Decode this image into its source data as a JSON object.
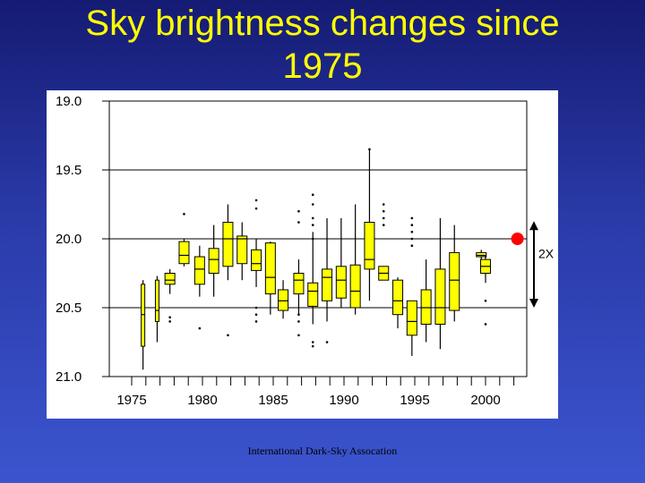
{
  "slide": {
    "title_line1": "Sky brightness changes since",
    "title_line2": "1975",
    "footer": "International Dark-Sky Assocation"
  },
  "chart_data": {
    "type": "boxplot",
    "title": "Sky brightness changes since 1975",
    "ylim": [
      21.0,
      19.0
    ],
    "y_reversed": true,
    "yticks": [
      "19.0",
      "19.5",
      "20.0",
      "20.5",
      "21.0"
    ],
    "xlim": [
      1974,
      2003
    ],
    "xticks": [
      "1975",
      "1980",
      "1985",
      "1990",
      "1995",
      "2000"
    ],
    "box_color": "#ffff00",
    "boxes": [
      {
        "x": 1975.8,
        "whisker_low": 20.3,
        "q1": 20.33,
        "median": 20.55,
        "q3": 20.78,
        "whisker_high": 20.95,
        "fill": false
      },
      {
        "x": 1976.8,
        "whisker_low": 20.27,
        "q1": 20.3,
        "median": 20.52,
        "q3": 20.6,
        "whisker_high": 20.75,
        "fill": false
      },
      {
        "x": 1977.7,
        "whisker_low": 20.22,
        "q1": 20.25,
        "median": 20.3,
        "q3": 20.33,
        "whisker_high": 20.4,
        "outliers": [
          20.57,
          20.6
        ]
      },
      {
        "x": 1978.7,
        "whisker_low": 20.0,
        "q1": 20.02,
        "median": 20.12,
        "q3": 20.18,
        "whisker_high": 20.2,
        "outliers": [
          19.82
        ]
      },
      {
        "x": 1979.8,
        "whisker_low": 20.05,
        "q1": 20.13,
        "median": 20.22,
        "q3": 20.33,
        "whisker_high": 20.42,
        "outliers": [
          20.65
        ]
      },
      {
        "x": 1980.8,
        "whisker_low": 19.9,
        "q1": 20.07,
        "median": 20.15,
        "q3": 20.25,
        "whisker_high": 20.42
      },
      {
        "x": 1981.8,
        "whisker_low": 19.75,
        "q1": 19.88,
        "median": 20.0,
        "q3": 20.2,
        "whisker_high": 20.3,
        "outliers": [
          20.7
        ]
      },
      {
        "x": 1982.8,
        "whisker_low": 19.88,
        "q1": 19.98,
        "median": 20.0,
        "q3": 20.18,
        "whisker_high": 20.3
      },
      {
        "x": 1983.8,
        "whisker_low": 20.0,
        "q1": 20.08,
        "median": 20.18,
        "q3": 20.23,
        "whisker_high": 20.35,
        "outliers": [
          19.72,
          19.78,
          20.5,
          20.55,
          20.6
        ]
      },
      {
        "x": 1984.8,
        "whisker_low": 20.02,
        "q1": 20.03,
        "median": 20.28,
        "q3": 20.4,
        "whisker_high": 20.55
      },
      {
        "x": 1985.7,
        "whisker_low": 20.3,
        "q1": 20.37,
        "median": 20.45,
        "q3": 20.52,
        "whisker_high": 20.58
      },
      {
        "x": 1986.8,
        "whisker_low": 20.15,
        "q1": 20.25,
        "median": 20.3,
        "q3": 20.4,
        "whisker_high": 20.55,
        "outliers": [
          19.8,
          19.88,
          20.55,
          20.6,
          20.7
        ]
      },
      {
        "x": 1987.8,
        "whisker_low": 19.95,
        "q1": 20.32,
        "median": 20.38,
        "q3": 20.49,
        "whisker_high": 20.62,
        "outliers": [
          19.68,
          19.75,
          19.85,
          19.9,
          20.0,
          20.75,
          20.78
        ]
      },
      {
        "x": 1988.8,
        "whisker_low": 19.85,
        "q1": 20.22,
        "median": 20.28,
        "q3": 20.45,
        "whisker_high": 20.6,
        "outliers": [
          20.75
        ]
      },
      {
        "x": 1989.8,
        "whisker_low": 19.85,
        "q1": 20.2,
        "median": 20.3,
        "q3": 20.43,
        "whisker_high": 20.5
      },
      {
        "x": 1990.8,
        "whisker_low": 19.75,
        "q1": 20.19,
        "median": 20.38,
        "q3": 20.5,
        "whisker_high": 20.55
      },
      {
        "x": 1991.8,
        "whisker_low": 19.35,
        "q1": 19.88,
        "median": 20.15,
        "q3": 20.22,
        "whisker_high": 20.45,
        "outliers": [
          19.35
        ]
      },
      {
        "x": 1992.8,
        "whisker_low": 20.2,
        "q1": 20.2,
        "median": 20.25,
        "q3": 20.3,
        "whisker_high": 20.3,
        "outliers": [
          19.75,
          19.8,
          19.85,
          19.9
        ]
      },
      {
        "x": 1993.8,
        "whisker_low": 20.28,
        "q1": 20.3,
        "median": 20.45,
        "q3": 20.55,
        "whisker_high": 20.65
      },
      {
        "x": 1994.8,
        "whisker_low": 20.45,
        "q1": 20.45,
        "median": 20.6,
        "q3": 20.7,
        "whisker_high": 20.85,
        "outliers": [
          19.85,
          19.9,
          19.95,
          20.0,
          20.05
        ]
      },
      {
        "x": 1995.8,
        "whisker_low": 20.15,
        "q1": 20.37,
        "median": 20.5,
        "q3": 20.62,
        "whisker_high": 20.75
      },
      {
        "x": 1996.8,
        "whisker_low": 19.85,
        "q1": 20.22,
        "median": 20.5,
        "q3": 20.62,
        "whisker_high": 20.8
      },
      {
        "x": 1997.8,
        "whisker_low": 19.9,
        "q1": 20.1,
        "median": 20.3,
        "q3": 20.52,
        "whisker_high": 20.6
      },
      {
        "x": 1999.7,
        "whisker_low": 20.08,
        "q1": 20.1,
        "median": 20.12,
        "q3": 20.13,
        "whisker_high": 20.15
      },
      {
        "x": 2000.0,
        "whisker_low": 20.12,
        "q1": 20.15,
        "median": 20.2,
        "q3": 20.25,
        "whisker_high": 20.32,
        "outliers": [
          20.45,
          20.62
        ]
      }
    ],
    "marker": {
      "x": 2002.0,
      "y": 20.0,
      "color": "#ff0000"
    },
    "annotation": {
      "label": "2X",
      "y_top": 19.95,
      "y_bottom": 20.5
    }
  }
}
